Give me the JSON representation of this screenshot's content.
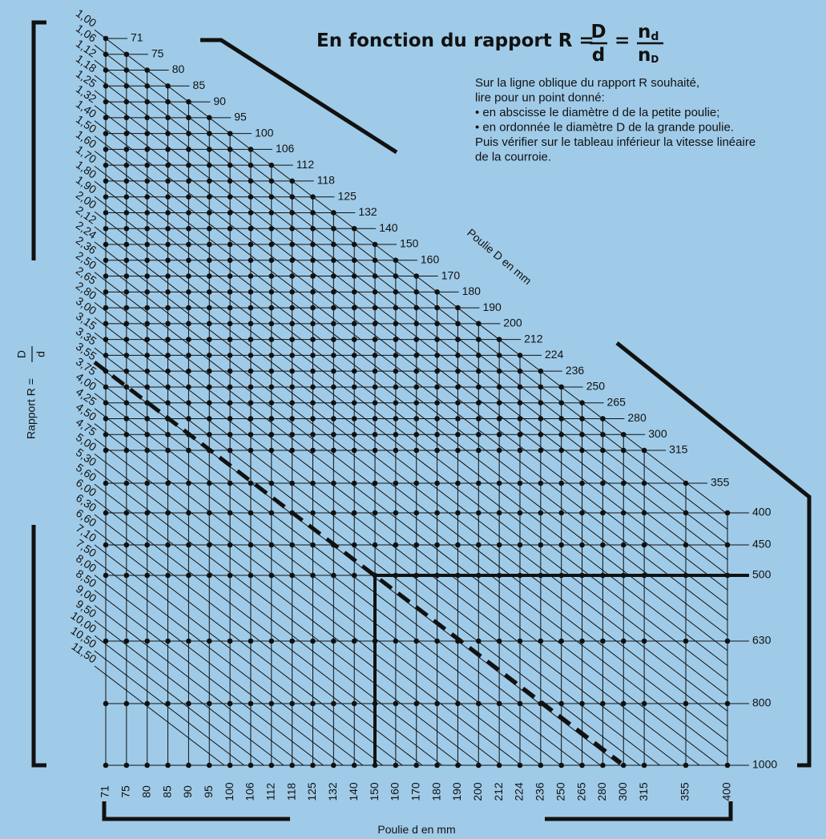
{
  "title": {
    "prefix": "En fonction du rapport R =",
    "frac1_num": "D",
    "frac1_den": "d",
    "eq": "=",
    "frac2_num": "n",
    "frac2_num_sub": "d",
    "frac2_den": "n",
    "frac2_den_sub": "D"
  },
  "instructions": [
    "Sur la ligne oblique du rapport R souhaité,",
    "lire pour un point donné:",
    "•  en abscisse le diamètre d de la petite poulie;",
    "•  en ordonnée le diamètre D de la grande poulie.",
    "Puis vérifier sur le tableau inférieur la vitesse linéaire",
    "de la courroie."
  ],
  "labels": {
    "D_axis": "Poulie D en mm",
    "d_axis": "Poulie d en mm",
    "R_axis": "Rapport R =",
    "R_num": "D",
    "R_den": "d"
  },
  "d_values": [
    71,
    75,
    80,
    85,
    90,
    95,
    100,
    106,
    112,
    118,
    125,
    132,
    140,
    150,
    160,
    170,
    180,
    190,
    200,
    212,
    224,
    236,
    250,
    265,
    280,
    300,
    315,
    355,
    400
  ],
  "D_values": [
    71,
    75,
    80,
    85,
    90,
    95,
    100,
    106,
    112,
    118,
    125,
    132,
    140,
    150,
    160,
    170,
    180,
    190,
    200,
    212,
    224,
    236,
    250,
    265,
    280,
    300,
    315,
    355,
    400,
    450,
    500,
    630,
    800,
    1000
  ],
  "ratios": [
    "1,00",
    "1,06",
    "1,12",
    "1,18",
    "1,25",
    "1,32",
    "1,40",
    "1,50",
    "1,60",
    "1,70",
    "1,80",
    "1,90",
    "2,00",
    "2,12",
    "2,24",
    "2,36",
    "2,50",
    "2,65",
    "2,80",
    "3,00",
    "3,15",
    "3,35",
    "3,55",
    "3,75",
    "4,00",
    "4,25",
    "4,50",
    "4,75",
    "5,00",
    "5,30",
    "5,60",
    "6,00",
    "6,30",
    "6,60",
    "7,10",
    "7,50",
    "8,00",
    "8,50",
    "9,00",
    "9,50",
    "10,00",
    "10,50",
    "11,50"
  ]
}
